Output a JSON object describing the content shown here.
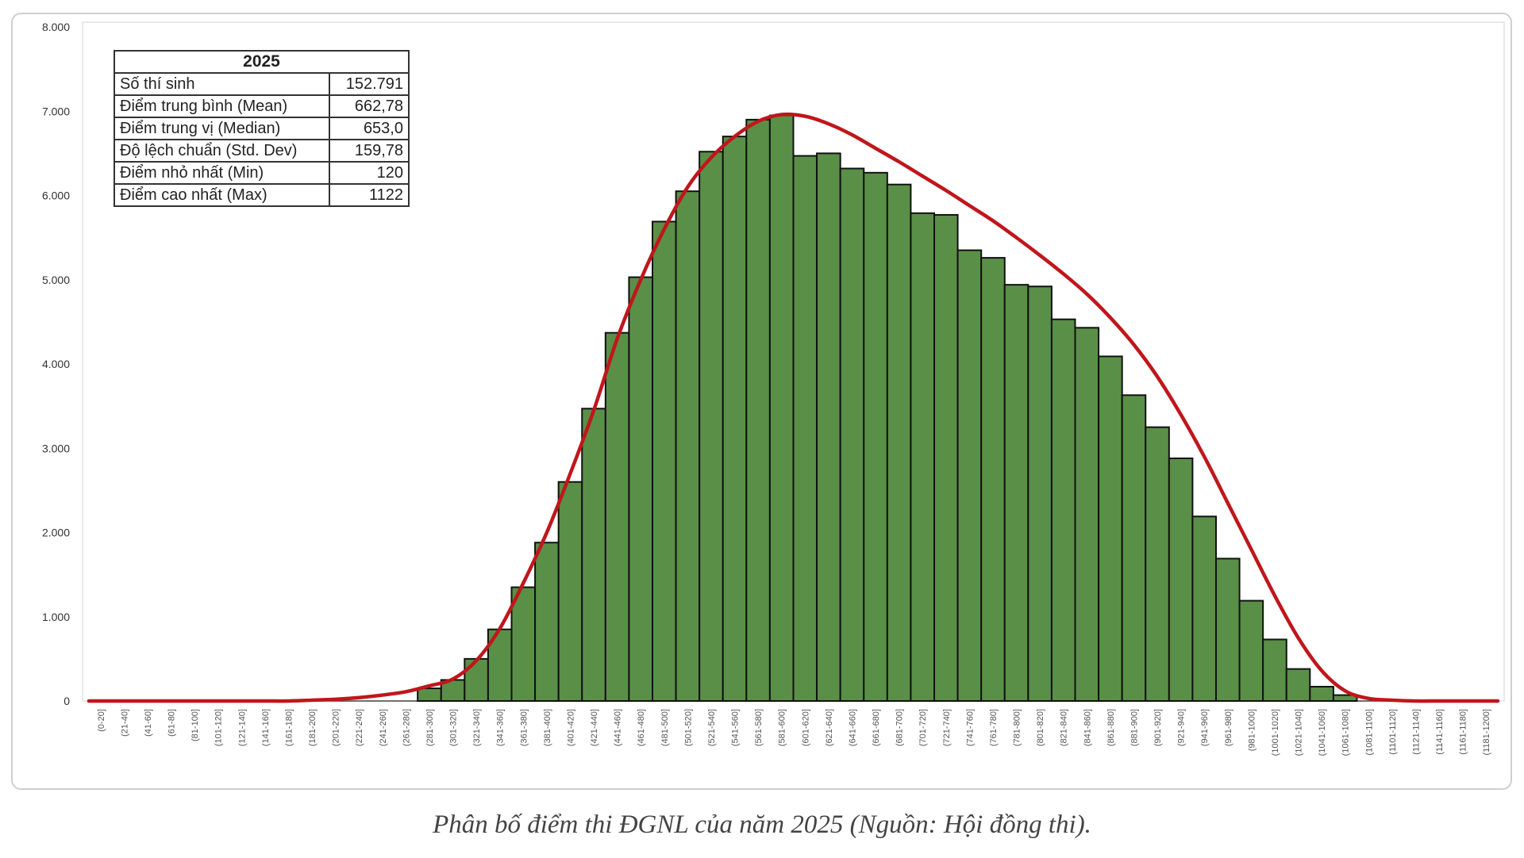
{
  "chart_data": {
    "type": "bar",
    "overlay": "line",
    "bar_color": "#5a8f47",
    "bar_stroke": "#111111",
    "curve_color": "#c0161b",
    "y_ticks": [
      "0",
      "1.000",
      "2.000",
      "3.000",
      "4.000",
      "5.000",
      "6.000",
      "7.000",
      "8.000"
    ],
    "ylim": [
      0,
      8000
    ],
    "categories": [
      "(0-20]",
      "(21-40]",
      "(41-60]",
      "(61-80]",
      "(81-100]",
      "(101-120]",
      "(121-140]",
      "(141-160]",
      "(161-180]",
      "(181-200]",
      "(201-220]",
      "(221-240]",
      "(241-260]",
      "(261-280]",
      "(281-300]",
      "(301-320]",
      "(321-340]",
      "(341-360]",
      "(361-380]",
      "(381-400]",
      "(401-420]",
      "(421-440]",
      "(441-460]",
      "(461-480]",
      "(481-500]",
      "(501-520]",
      "(521-540]",
      "(541-560]",
      "(561-580]",
      "(581-600]",
      "(601-620]",
      "(621-640]",
      "(641-660]",
      "(661-680]",
      "(681-700]",
      "(701-720]",
      "(721-740]",
      "(741-760]",
      "(761-780]",
      "(781-800]",
      "(801-820]",
      "(821-840]",
      "(841-860]",
      "(861-880]",
      "(881-900]",
      "(901-920]",
      "(921-940]",
      "(941-960]",
      "(961-980]",
      "(981-1000]",
      "(1001-1020]",
      "(1021-1040]",
      "(1041-1060]",
      "(1061-1080]",
      "(1081-1100]",
      "(1101-1120]",
      "(1121-1140]",
      "(1141-1160]",
      "(1161-1180]",
      "(1181-1200]"
    ],
    "series": [
      {
        "type": "bar",
        "values": [
          0,
          0,
          0,
          0,
          0,
          0,
          0,
          0,
          0,
          0,
          0,
          0,
          0,
          0,
          150,
          250,
          500,
          850,
          1350,
          1880,
          2600,
          3470,
          4370,
          5030,
          5690,
          6050,
          6520,
          6700,
          6900,
          6950,
          6470,
          6500,
          6320,
          6270,
          6130,
          5790,
          5770,
          5350,
          5260,
          4940,
          4920,
          4530,
          4430,
          4090,
          3630,
          3250,
          2880,
          2190,
          1690,
          1190,
          730,
          380,
          170,
          70,
          0,
          0,
          0,
          0,
          0,
          0
        ]
      },
      {
        "type": "line",
        "values": [
          0,
          0,
          0,
          0,
          0,
          0,
          0,
          0,
          0,
          10,
          20,
          40,
          70,
          110,
          180,
          260,
          480,
          860,
          1400,
          2000,
          2700,
          3450,
          4300,
          5000,
          5600,
          6100,
          6450,
          6700,
          6880,
          6960,
          6940,
          6850,
          6720,
          6560,
          6400,
          6230,
          6060,
          5880,
          5700,
          5500,
          5290,
          5070,
          4830,
          4550,
          4230,
          3850,
          3400,
          2900,
          2350,
          1800,
          1250,
          750,
          360,
          120,
          30,
          10,
          0,
          0,
          0,
          0
        ]
      }
    ]
  },
  "stats": {
    "year": "2025",
    "rows": [
      {
        "label": "Số thí sinh",
        "value": "152.791"
      },
      {
        "label": "Điểm trung bình (Mean)",
        "value": "662,78"
      },
      {
        "label": "Điểm trung vị (Median)",
        "value": "653,0"
      },
      {
        "label": "Độ lệch chuẩn (Std. Dev)",
        "value": "159,78"
      },
      {
        "label": "Điểm nhỏ nhất (Min)",
        "value": "120"
      },
      {
        "label": "Điểm cao nhất (Max)",
        "value": "1122"
      }
    ]
  },
  "caption": "Phân bố điểm thi ĐGNL của năm 2025 (Nguồn: Hội đồng thi)."
}
